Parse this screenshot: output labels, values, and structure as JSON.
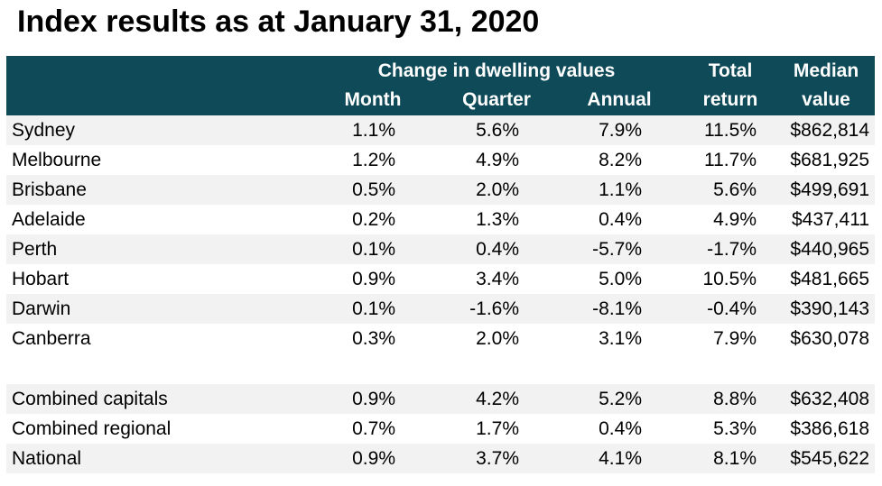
{
  "title": "Index results as at January 31, 2020",
  "header": {
    "group_label": "Change in dwelling values",
    "month": "Month",
    "quarter": "Quarter",
    "annual": "Annual",
    "total_line1": "Total",
    "total_line2": "return",
    "median_line1": "Median",
    "median_line2": "value"
  },
  "colors": {
    "header_bg": "#0f4a58",
    "header_text": "#ffffff",
    "row_shade": "#f2f2f2"
  },
  "rows": [
    {
      "name": "Sydney",
      "month": "1.1%",
      "quarter": "5.6%",
      "annual": "7.9%",
      "total": "11.5%",
      "median": "$862,814"
    },
    {
      "name": "Melbourne",
      "month": "1.2%",
      "quarter": "4.9%",
      "annual": "8.2%",
      "total": "11.7%",
      "median": "$681,925"
    },
    {
      "name": "Brisbane",
      "month": "0.5%",
      "quarter": "2.0%",
      "annual": "1.1%",
      "total": "5.6%",
      "median": "$499,691"
    },
    {
      "name": "Adelaide",
      "month": "0.2%",
      "quarter": "1.3%",
      "annual": "0.4%",
      "total": "4.9%",
      "median": "$437,411"
    },
    {
      "name": "Perth",
      "month": "0.1%",
      "quarter": "0.4%",
      "annual": "-5.7%",
      "total": "-1.7%",
      "median": "$440,965"
    },
    {
      "name": "Hobart",
      "month": "0.9%",
      "quarter": "3.4%",
      "annual": "5.0%",
      "total": "10.5%",
      "median": "$481,665"
    },
    {
      "name": "Darwin",
      "month": "0.1%",
      "quarter": "-1.6%",
      "annual": "-8.1%",
      "total": "-0.4%",
      "median": "$390,143"
    },
    {
      "name": "Canberra",
      "month": "0.3%",
      "quarter": "2.0%",
      "annual": "3.1%",
      "total": "7.9%",
      "median": "$630,078"
    },
    {
      "name": "Combined capitals",
      "month": "0.9%",
      "quarter": "4.2%",
      "annual": "5.2%",
      "total": "8.8%",
      "median": "$632,408"
    },
    {
      "name": "Combined regional",
      "month": "0.7%",
      "quarter": "1.7%",
      "annual": "0.4%",
      "total": "5.3%",
      "median": "$386,618"
    },
    {
      "name": "National",
      "month": "0.9%",
      "quarter": "3.7%",
      "annual": "4.1%",
      "total": "8.1%",
      "median": "$545,622"
    }
  ]
}
